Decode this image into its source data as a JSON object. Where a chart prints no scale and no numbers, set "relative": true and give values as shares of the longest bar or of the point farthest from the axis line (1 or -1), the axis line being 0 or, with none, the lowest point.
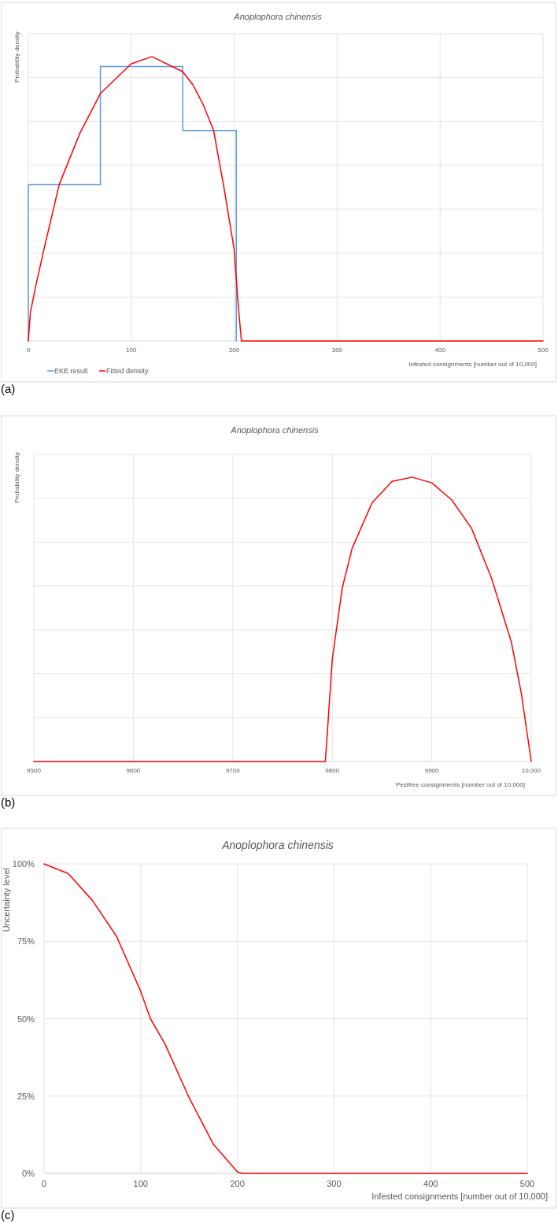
{
  "chart_data": [
    {
      "type": "line",
      "title": "Anoplophora chinensis",
      "xlabel": "Infested consignments [number out of 10,000]",
      "ylabel": "Probability density",
      "annotations": [
        "(a)"
      ],
      "relative": true,
      "tick_labels": "x",
      "xlim": [
        0,
        500
      ],
      "xticks": [
        0,
        100,
        200,
        300,
        400,
        500
      ],
      "grid": true,
      "legend": "bottom left",
      "series": [
        {
          "name": "EKE result",
          "color": "#5b9bd5",
          "x": [
            0,
            0,
            70,
            70,
            150,
            150,
            202,
            202
          ],
          "values": [
            0,
            0.55,
            0.55,
            0.965,
            0.965,
            0.74,
            0.74,
            0
          ]
        },
        {
          "name": "Fitted density",
          "color": "#ff0000",
          "x": [
            0,
            2,
            7,
            15,
            30,
            50,
            70,
            100,
            120,
            150,
            160,
            170,
            180,
            190,
            200,
            204,
            207,
            300,
            400,
            500
          ],
          "values": [
            0,
            0.1,
            0.19,
            0.32,
            0.55,
            0.73,
            0.87,
            0.975,
            1,
            0.947,
            0.9,
            0.83,
            0.74,
            0.54,
            0.32,
            0.12,
            0,
            0,
            0,
            0
          ]
        }
      ]
    },
    {
      "type": "line",
      "title": "Anoplophora chinensis",
      "xlabel": "Pestfree consignments [number out of 10,000]",
      "ylabel": "Probability density",
      "annotations": [
        "(b)"
      ],
      "relative": true,
      "tick_labels": "x",
      "xlim": [
        9500,
        10000
      ],
      "xticks": [
        9500,
        9600,
        9700,
        9800,
        9900,
        {
          "value": 10000,
          "label": "10,000"
        }
      ],
      "grid": true,
      "series": [
        {
          "color": "#ff0000",
          "x": [
            9500,
            9600,
            9700,
            9793,
            9795,
            9800,
            9810,
            9820,
            9840,
            9860,
            9880,
            9900,
            9920,
            9940,
            9960,
            9980,
            9990,
            10000
          ],
          "values": [
            0,
            0,
            0,
            0,
            0.1,
            0.36,
            0.61,
            0.75,
            0.91,
            0.985,
            1,
            0.98,
            0.92,
            0.82,
            0.645,
            0.42,
            0.24,
            0
          ]
        }
      ]
    },
    {
      "type": "line",
      "title": "Anoplophora chinensis",
      "xlabel": "Infested consignments [number out of 10,000]",
      "ylabel": "Uncertainty level",
      "annotations": [
        "(c)"
      ],
      "xlim": [
        0,
        500
      ],
      "xticks": [
        0,
        100,
        200,
        300,
        400,
        500
      ],
      "ylim": [
        0,
        100
      ],
      "yticks": [
        {
          "value": 0,
          "label": "0%"
        },
        {
          "value": 25,
          "label": "25%"
        },
        {
          "value": 50,
          "label": "50%"
        },
        {
          "value": 75,
          "label": "75%"
        },
        {
          "value": 100,
          "label": "100%"
        }
      ],
      "grid": true,
      "series": [
        {
          "color": "#ff0000",
          "x": [
            0,
            25,
            50,
            75,
            100,
            110,
            125,
            150,
            175,
            200,
            205,
            300,
            400,
            500
          ],
          "values": [
            100,
            96.9,
            88.2,
            76.6,
            58.8,
            50,
            41.9,
            24.5,
            9.5,
            0.5,
            0,
            0,
            0,
            0
          ]
        }
      ]
    }
  ]
}
